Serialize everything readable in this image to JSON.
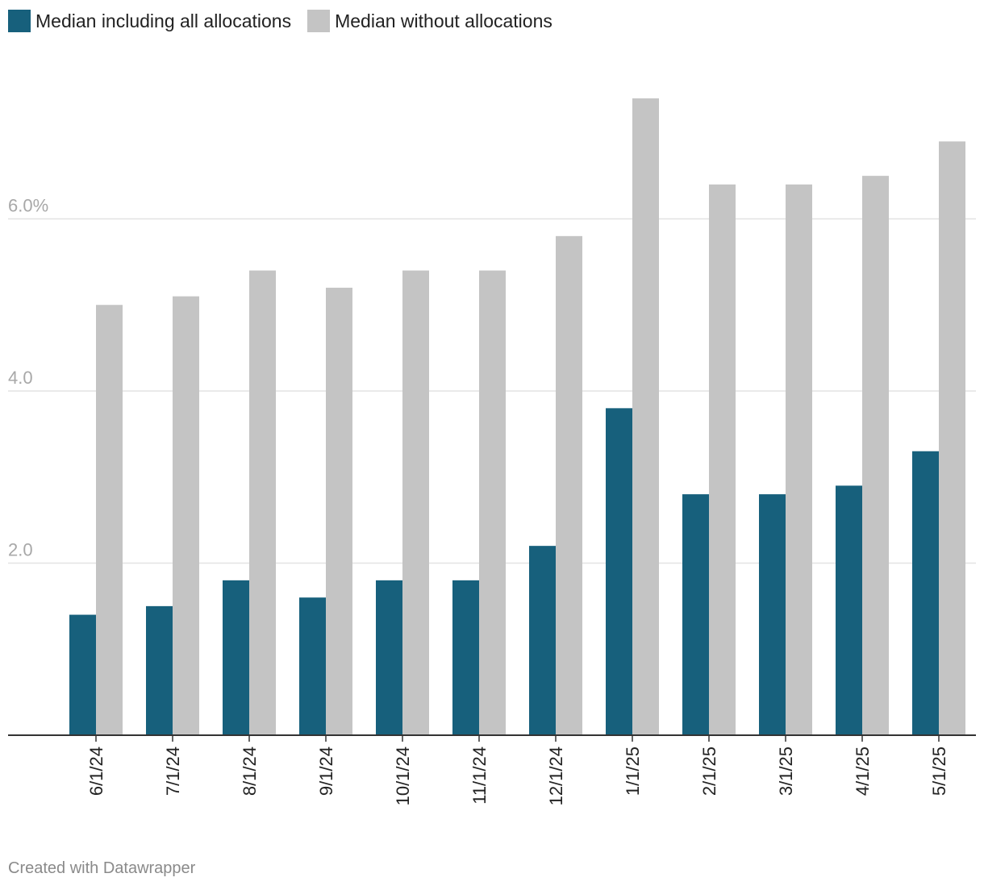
{
  "chart_data": {
    "type": "bar",
    "title": "",
    "xlabel": "",
    "ylabel": "",
    "categories": [
      "6/1/24",
      "7/1/24",
      "8/1/24",
      "9/1/24",
      "10/1/24",
      "11/1/24",
      "12/1/24",
      "1/1/25",
      "2/1/25",
      "3/1/25",
      "4/1/25",
      "5/1/25"
    ],
    "series": [
      {
        "name": "Median including all allocations",
        "color": "#17607c",
        "values": [
          1.4,
          1.5,
          1.8,
          1.6,
          1.8,
          1.8,
          2.2,
          3.8,
          2.8,
          2.8,
          2.9,
          3.3
        ]
      },
      {
        "name": "Median without allocations",
        "color": "#c4c4c4",
        "values": [
          5.0,
          5.1,
          5.4,
          5.2,
          5.4,
          5.4,
          5.8,
          7.4,
          6.4,
          6.4,
          6.5,
          6.9
        ]
      }
    ],
    "yticks": [
      {
        "value": 2,
        "label": "2.0"
      },
      {
        "value": 4,
        "label": "4.0"
      },
      {
        "value": 6,
        "label": "6.0%"
      }
    ],
    "ylim": [
      0,
      7.4
    ],
    "legend_position": "top-left",
    "grid": true
  },
  "footer": {
    "credit": "Created with Datawrapper"
  }
}
